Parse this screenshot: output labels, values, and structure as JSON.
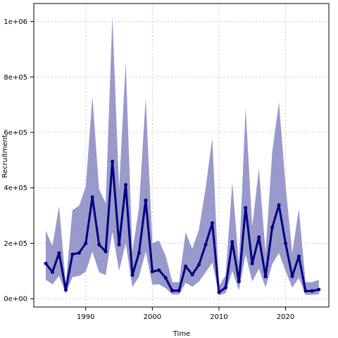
{
  "chart_data": {
    "type": "line",
    "title": "",
    "xlabel": "Time",
    "ylabel": "Recruitment",
    "xlim": [
      1982.2,
      2026.5
    ],
    "ylim": [
      -30000,
      1065000
    ],
    "x_ticks": [
      1990,
      2000,
      2010,
      2020
    ],
    "x_tick_labels": [
      "1990",
      "2000",
      "2010",
      "2020"
    ],
    "y_ticks": [
      0,
      200000,
      400000,
      600000,
      800000,
      1000000
    ],
    "y_tick_labels": [
      "0e+00",
      "2e+05",
      "4e+05",
      "6e+05",
      "8e+05",
      "1e+06"
    ],
    "grid": true,
    "colors": {
      "line": "#000080",
      "band": "#9999cc",
      "grid": "#c8c8c8",
      "axis": "#000000"
    },
    "x": [
      1984,
      1985,
      1986,
      1987,
      1988,
      1989,
      1990,
      1991,
      1992,
      1993,
      1994,
      1995,
      1996,
      1997,
      1998,
      1999,
      2000,
      2001,
      2002,
      2003,
      2004,
      2005,
      2006,
      2007,
      2008,
      2009,
      2010,
      2011,
      2012,
      2013,
      2014,
      2015,
      2016,
      2017,
      2018,
      2019,
      2020,
      2021,
      2022,
      2023,
      2024,
      2025
    ],
    "series": [
      {
        "values": [
          127000,
          96000,
          165000,
          32000,
          160000,
          165000,
          200000,
          367000,
          195000,
          170000,
          495000,
          195000,
          411000,
          85000,
          165000,
          355000,
          98000,
          103000,
          75000,
          29000,
          29000,
          117000,
          87000,
          123000,
          195000,
          273000,
          23000,
          40000,
          205000,
          62000,
          328000,
          127000,
          222000,
          80000,
          257000,
          338000,
          200000,
          81000,
          153000,
          28000,
          28000,
          33000
        ],
        "lower": [
          68000,
          52000,
          82000,
          18000,
          78000,
          82000,
          97000,
          170000,
          95000,
          85000,
          242000,
          100000,
          200000,
          42000,
          80000,
          170000,
          50000,
          52000,
          38000,
          15000,
          15000,
          57000,
          43000,
          62000,
          95000,
          130000,
          12000,
          20000,
          100000,
          30000,
          160000,
          62000,
          108000,
          40000,
          125000,
          165000,
          100000,
          40000,
          75000,
          14000,
          14000,
          16000
        ],
        "upper": [
          245000,
          190000,
          335000,
          55000,
          320000,
          335000,
          405000,
          730000,
          395000,
          345000,
          1020000,
          395000,
          855000,
          170000,
          330000,
          725000,
          200000,
          210000,
          155000,
          60000,
          60000,
          240000,
          180000,
          250000,
          400000,
          580000,
          45000,
          85000,
          420000,
          125000,
          690000,
          260000,
          470000,
          165000,
          530000,
          710000,
          410000,
          165000,
          325000,
          60000,
          60000,
          68000
        ]
      }
    ]
  }
}
